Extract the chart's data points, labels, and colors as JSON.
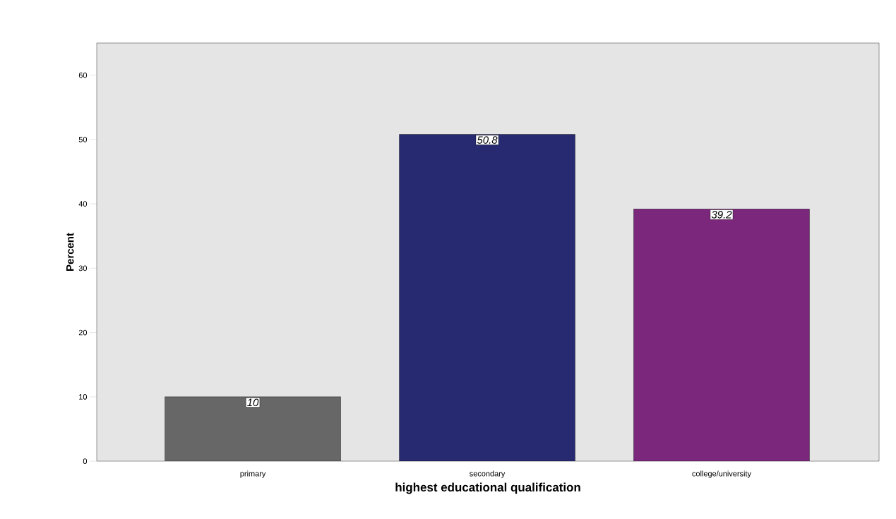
{
  "chart_data": {
    "type": "bar",
    "xlabel": "highest educational qualification",
    "ylabel": "Percent",
    "categories": [
      "primary",
      "secondary",
      "college/university"
    ],
    "values": [
      10,
      50.8,
      39.2
    ],
    "colors": [
      "#676767",
      "#272a70",
      "#7b287c"
    ],
    "ylim": [
      0,
      65
    ],
    "yticks": [
      0,
      10,
      20,
      30,
      40,
      50,
      60
    ],
    "data_labels": true
  }
}
